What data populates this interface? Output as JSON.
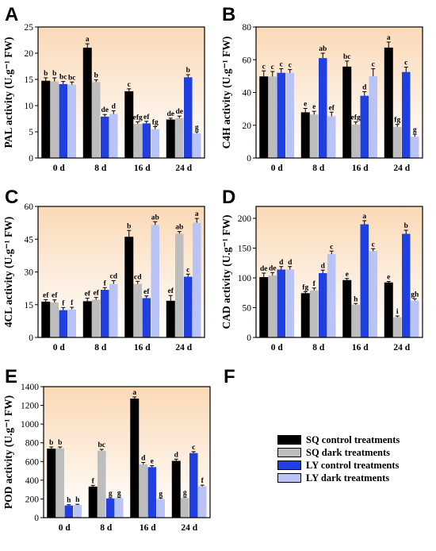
{
  "colors": {
    "sq_control": "#000000",
    "sq_dark": "#bdbdbd",
    "ly_control": "#1f3fe0",
    "ly_dark": "#b9c3f5",
    "bg_top": "#fbd9b6",
    "bg_bottom": "#ffffff"
  },
  "chart_data": [
    {
      "panel": "A",
      "type": "bar",
      "ylabel": "PAL activity (U.g⁻¹ FW)",
      "ylim": [
        0,
        25
      ],
      "yticks": [
        0,
        5,
        10,
        15,
        20,
        25
      ],
      "categories": [
        "0 d",
        "8 d",
        "16 d",
        "24 d"
      ],
      "series": [
        {
          "values": [
            14.7,
            21.0,
            12.7,
            7.3
          ],
          "errors": [
            0.6,
            0.8,
            0.5,
            0.3
          ],
          "letters": [
            "b",
            "a",
            "c",
            "de"
          ]
        },
        {
          "values": [
            14.6,
            14.5,
            6.5,
            7.6
          ],
          "errors": [
            0.7,
            0.4,
            0.4,
            0.4
          ],
          "letters": [
            "b",
            "b",
            "efg",
            "de"
          ]
        },
        {
          "values": [
            14.1,
            7.9,
            6.6,
            15.4
          ],
          "errors": [
            0.5,
            0.4,
            0.4,
            0.5
          ],
          "letters": [
            "bc",
            "de",
            "ef",
            "b"
          ]
        },
        {
          "values": [
            14.0,
            8.4,
            5.5,
            4.7
          ],
          "errors": [
            0.5,
            0.6,
            0.5,
            0.3
          ],
          "letters": [
            "bc",
            "d",
            "fg",
            "g"
          ]
        }
      ]
    },
    {
      "panel": "B",
      "type": "bar",
      "ylabel": "C4H activity (U.g⁻¹ FW)",
      "ylim": [
        0,
        80
      ],
      "yticks": [
        0,
        20,
        40,
        60,
        80
      ],
      "categories": [
        "0 d",
        "8 d",
        "16 d",
        "24 d"
      ],
      "series": [
        {
          "values": [
            49.7,
            27.8,
            55.7,
            67.3
          ],
          "errors": [
            3.5,
            2.5,
            3.5,
            3.5
          ],
          "letters": [
            "c",
            "e",
            "bc",
            "a"
          ]
        },
        {
          "values": [
            49.8,
            26.5,
            20.5,
            19.0
          ],
          "errors": [
            3.0,
            2.0,
            1.5,
            1.5
          ],
          "letters": [
            "c",
            "e",
            "efg",
            "fg"
          ]
        },
        {
          "values": [
            52.0,
            61.0,
            38.0,
            52.5
          ],
          "errors": [
            2.5,
            3.0,
            2.5,
            3.0
          ],
          "letters": [
            "c",
            "ab",
            "d",
            "c"
          ]
        },
        {
          "values": [
            52.0,
            25.5,
            50.0,
            13.0
          ],
          "errors": [
            2.0,
            2.5,
            4.5,
            1.5
          ],
          "letters": [
            "c",
            "ef",
            "c",
            "g"
          ]
        }
      ]
    },
    {
      "panel": "C",
      "type": "bar",
      "ylabel": "4CL activity (U.g⁻¹ FW)",
      "ylim": [
        0,
        60
      ],
      "yticks": [
        0,
        15,
        30,
        45,
        60
      ],
      "categories": [
        "0 d",
        "8 d",
        "16 d",
        "24 d"
      ],
      "series": [
        {
          "values": [
            16.3,
            16.5,
            46.0,
            16.7
          ],
          "errors": [
            1.0,
            1.5,
            3.0,
            2.5
          ],
          "letters": [
            "ef",
            "ef",
            "b",
            "ef"
          ]
        },
        {
          "values": [
            16.0,
            17.3,
            24.5,
            47.5
          ],
          "errors": [
            1.2,
            1.0,
            1.2,
            1.0
          ],
          "letters": [
            "ef",
            "ef",
            "cd",
            "ab"
          ]
        },
        {
          "values": [
            12.5,
            21.8,
            18.0,
            27.8
          ],
          "errors": [
            1.2,
            1.0,
            1.0,
            1.2
          ],
          "letters": [
            "f",
            "f",
            "ef",
            "c"
          ]
        },
        {
          "values": [
            12.8,
            24.5,
            51.5,
            52.5
          ],
          "errors": [
            1.0,
            1.5,
            1.5,
            2.0
          ],
          "letters": [
            "f",
            "cd",
            "ab",
            "a"
          ]
        }
      ]
    },
    {
      "panel": "D",
      "type": "bar",
      "ylabel": "CAD activity (U.g⁻¹ FW)",
      "ylim": [
        0,
        220
      ],
      "yticks": [
        0,
        50,
        100,
        150,
        200
      ],
      "categories": [
        "0 d",
        "8 d",
        "16 d",
        "24 d"
      ],
      "series": [
        {
          "values": [
            101,
            74,
            96,
            92
          ],
          "errors": [
            7,
            3,
            3,
            2
          ],
          "letters": [
            "de",
            "fg",
            "e",
            "e"
          ]
        },
        {
          "values": [
            104,
            79,
            55,
            34
          ],
          "errors": [
            5,
            4,
            2,
            2
          ],
          "letters": [
            "de",
            "f",
            "h",
            "i"
          ]
        },
        {
          "values": [
            114,
            108,
            190,
            174
          ],
          "errors": [
            5,
            5,
            6,
            6
          ],
          "letters": [
            "d",
            "d",
            "a",
            "b"
          ]
        },
        {
          "values": [
            114,
            140,
            145,
            62
          ],
          "errors": [
            5,
            5,
            4,
            3
          ],
          "letters": [
            "d",
            "c",
            "c",
            "gh"
          ]
        }
      ]
    },
    {
      "panel": "E",
      "type": "bar",
      "ylabel": "POD activity (U.g⁻¹ FW)",
      "ylim": [
        0,
        1400
      ],
      "yticks": [
        0,
        200,
        400,
        600,
        800,
        1000,
        1200,
        1400
      ],
      "categories": [
        "0 d",
        "8 d",
        "16 d",
        "24 d"
      ],
      "series": [
        {
          "values": [
            735,
            330,
            1270,
            605
          ],
          "errors": [
            20,
            15,
            20,
            20
          ],
          "letters": [
            "b",
            "f",
            "a",
            "d"
          ]
        },
        {
          "values": [
            740,
            715,
            570,
            210
          ],
          "errors": [
            15,
            15,
            20,
            10
          ],
          "letters": [
            "b",
            "bc",
            "d",
            "g"
          ]
        },
        {
          "values": [
            130,
            205,
            540,
            690
          ],
          "errors": [
            8,
            8,
            15,
            15
          ],
          "letters": [
            "h",
            "g",
            "e",
            "c"
          ]
        },
        {
          "values": [
            135,
            210,
            200,
            335
          ],
          "errors": [
            8,
            8,
            10,
            12
          ],
          "letters": [
            "h",
            "g",
            "g",
            "f"
          ]
        }
      ]
    }
  ],
  "panel_labels": [
    "A",
    "B",
    "C",
    "D",
    "E",
    "F"
  ],
  "legend": {
    "items": [
      {
        "label": "SQ  control treatments",
        "color_key": "sq_control"
      },
      {
        "label": "SQ  dark treatments",
        "color_key": "sq_dark"
      },
      {
        "label": "LY  control treatments",
        "color_key": "ly_control"
      },
      {
        "label": "LY  dark treatments",
        "color_key": "ly_dark"
      }
    ]
  }
}
